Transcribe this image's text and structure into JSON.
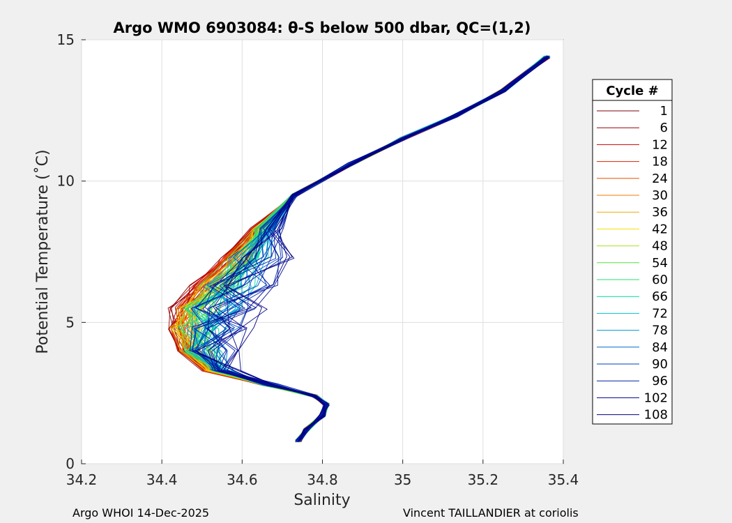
{
  "chart_data": {
    "type": "line",
    "title": "Argo WMO 6903084: θ-S below 500 dbar,  QC=(1,2)",
    "xlabel": "Salinity",
    "ylabel": "Potential Temperature (˚C)",
    "xlim": [
      34.2,
      35.4
    ],
    "ylim": [
      0,
      15
    ],
    "x_ticks": [
      "34.2",
      "34.4",
      "34.6",
      "34.8",
      "35",
      "35.2",
      "35.4"
    ],
    "y_ticks": [
      "0",
      "5",
      "10",
      "15"
    ],
    "grid": true,
    "legend": {
      "title": "Cycle #",
      "placement": "right",
      "entries": [
        {
          "label": "1",
          "color": "#800000"
        },
        {
          "label": "6",
          "color": "#a00000"
        },
        {
          "label": "12",
          "color": "#c80000"
        },
        {
          "label": "18",
          "color": "#e02000"
        },
        {
          "label": "24",
          "color": "#ee5000"
        },
        {
          "label": "30",
          "color": "#f07800"
        },
        {
          "label": "36",
          "color": "#f0a800"
        },
        {
          "label": "42",
          "color": "#f0e000"
        },
        {
          "label": "48",
          "color": "#a8e020"
        },
        {
          "label": "54",
          "color": "#50e040"
        },
        {
          "label": "60",
          "color": "#20e070"
        },
        {
          "label": "66",
          "color": "#00d8a0"
        },
        {
          "label": "72",
          "color": "#00c0d0"
        },
        {
          "label": "78",
          "color": "#0098d0"
        },
        {
          "label": "84",
          "color": "#0068d0"
        },
        {
          "label": "90",
          "color": "#0040c0"
        },
        {
          "label": "96",
          "color": "#0020a0"
        },
        {
          "label": "102",
          "color": "#000090"
        },
        {
          "label": "108",
          "color": "#000080"
        }
      ]
    },
    "curve_template": [
      [
        34.74,
        0.8
      ],
      [
        34.76,
        1.2
      ],
      [
        34.8,
        1.7
      ],
      [
        34.81,
        2.1
      ],
      [
        34.78,
        2.4
      ],
      [
        34.65,
        2.8
      ],
      [
        34.5,
        3.3
      ],
      [
        34.43,
        4.0
      ],
      [
        34.4,
        4.8
      ],
      [
        34.41,
        5.5
      ],
      [
        34.46,
        6.3
      ],
      [
        34.54,
        7.3
      ],
      [
        34.62,
        8.3
      ],
      [
        34.73,
        9.5
      ],
      [
        34.87,
        10.6
      ],
      [
        35.0,
        11.5
      ],
      [
        35.13,
        12.3
      ],
      [
        35.25,
        13.2
      ],
      [
        35.36,
        14.4
      ]
    ],
    "annotations": {
      "footer_left": "Argo WHOI 14-Dec-2025",
      "footer_right": "Vincent TAILLANDIER at coriolis"
    }
  }
}
